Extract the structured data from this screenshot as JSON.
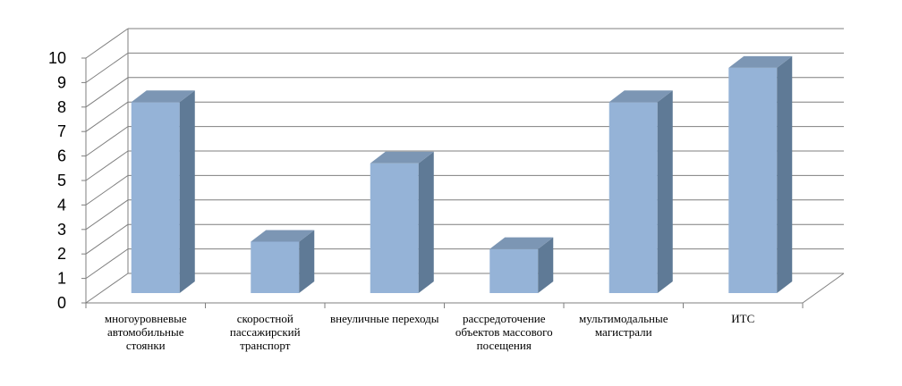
{
  "chart_data": {
    "type": "bar",
    "title": "",
    "xlabel": "",
    "ylabel": "",
    "ylim": [
      0,
      10
    ],
    "yticks": [
      "0",
      "1",
      "2",
      "3",
      "4",
      "5",
      "6",
      "7",
      "8",
      "9",
      "10"
    ],
    "grid": true,
    "style": "3d-columns",
    "colors": {
      "front": "#95B3D7",
      "side": "#5F7A96",
      "top": "#7C96B4",
      "grid": "#7F7F7F"
    },
    "categories": [
      "многоуровневые автомобильные стоянки",
      "скоростной пассажирский транспорт",
      "внеуличные переходы",
      "рассредоточение объектов массового посещения",
      "мультимодальные магистрали",
      "ИТС"
    ],
    "values": [
      7.8,
      2.1,
      5.3,
      1.8,
      7.8,
      9.2
    ]
  }
}
